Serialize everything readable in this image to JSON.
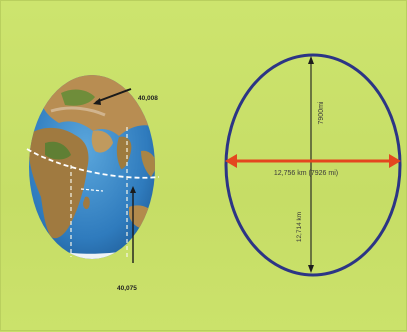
{
  "globe": {
    "label_top": "40,008",
    "label_bottom": "40,075"
  },
  "ellipse": {
    "equatorial_label": "12,756 km (7926 mi)",
    "polar_top_label": "7900mi",
    "polar_bottom_label": "12,714 km"
  },
  "colors": {
    "background": "#c8e06a",
    "ellipse_stroke": "#2c3585",
    "equator_arrow": "#e4461f",
    "ocean": "#3b86c4",
    "land": "#b48a4f"
  }
}
